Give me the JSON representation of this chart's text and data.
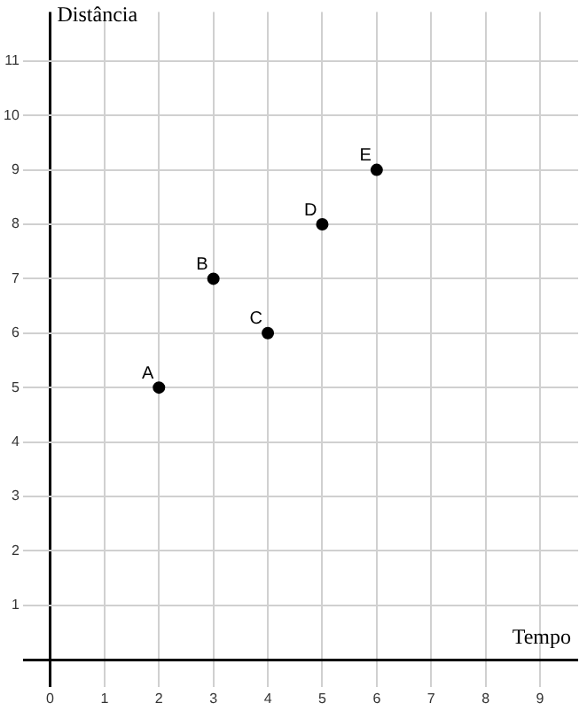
{
  "chart_data": {
    "type": "scatter",
    "xlabel": "Tempo",
    "ylabel": "Distância",
    "x": [
      2,
      3,
      4,
      5,
      6
    ],
    "values": [
      5,
      7,
      6,
      8,
      9
    ],
    "color": "#000000",
    "marker": "circle",
    "xlim": [
      -0.5,
      9.7
    ],
    "ylim": [
      -0.5,
      11.9
    ],
    "xticks": [
      0,
      1,
      2,
      3,
      4,
      5,
      6,
      7,
      8,
      9
    ],
    "yticks": [
      {
        "value": 0,
        "label": null
      },
      1,
      2,
      3,
      4,
      5,
      6,
      7,
      8,
      9,
      10,
      11
    ],
    "grid": true,
    "legend": false,
    "annotations": [
      {
        "text": "A",
        "x": 2,
        "y": 5
      },
      {
        "text": "B",
        "x": 3,
        "y": 7
      },
      {
        "text": "C",
        "x": 4,
        "y": 6
      },
      {
        "text": "D",
        "x": 5,
        "y": 8
      },
      {
        "text": "E",
        "x": 6,
        "y": 9
      }
    ]
  }
}
